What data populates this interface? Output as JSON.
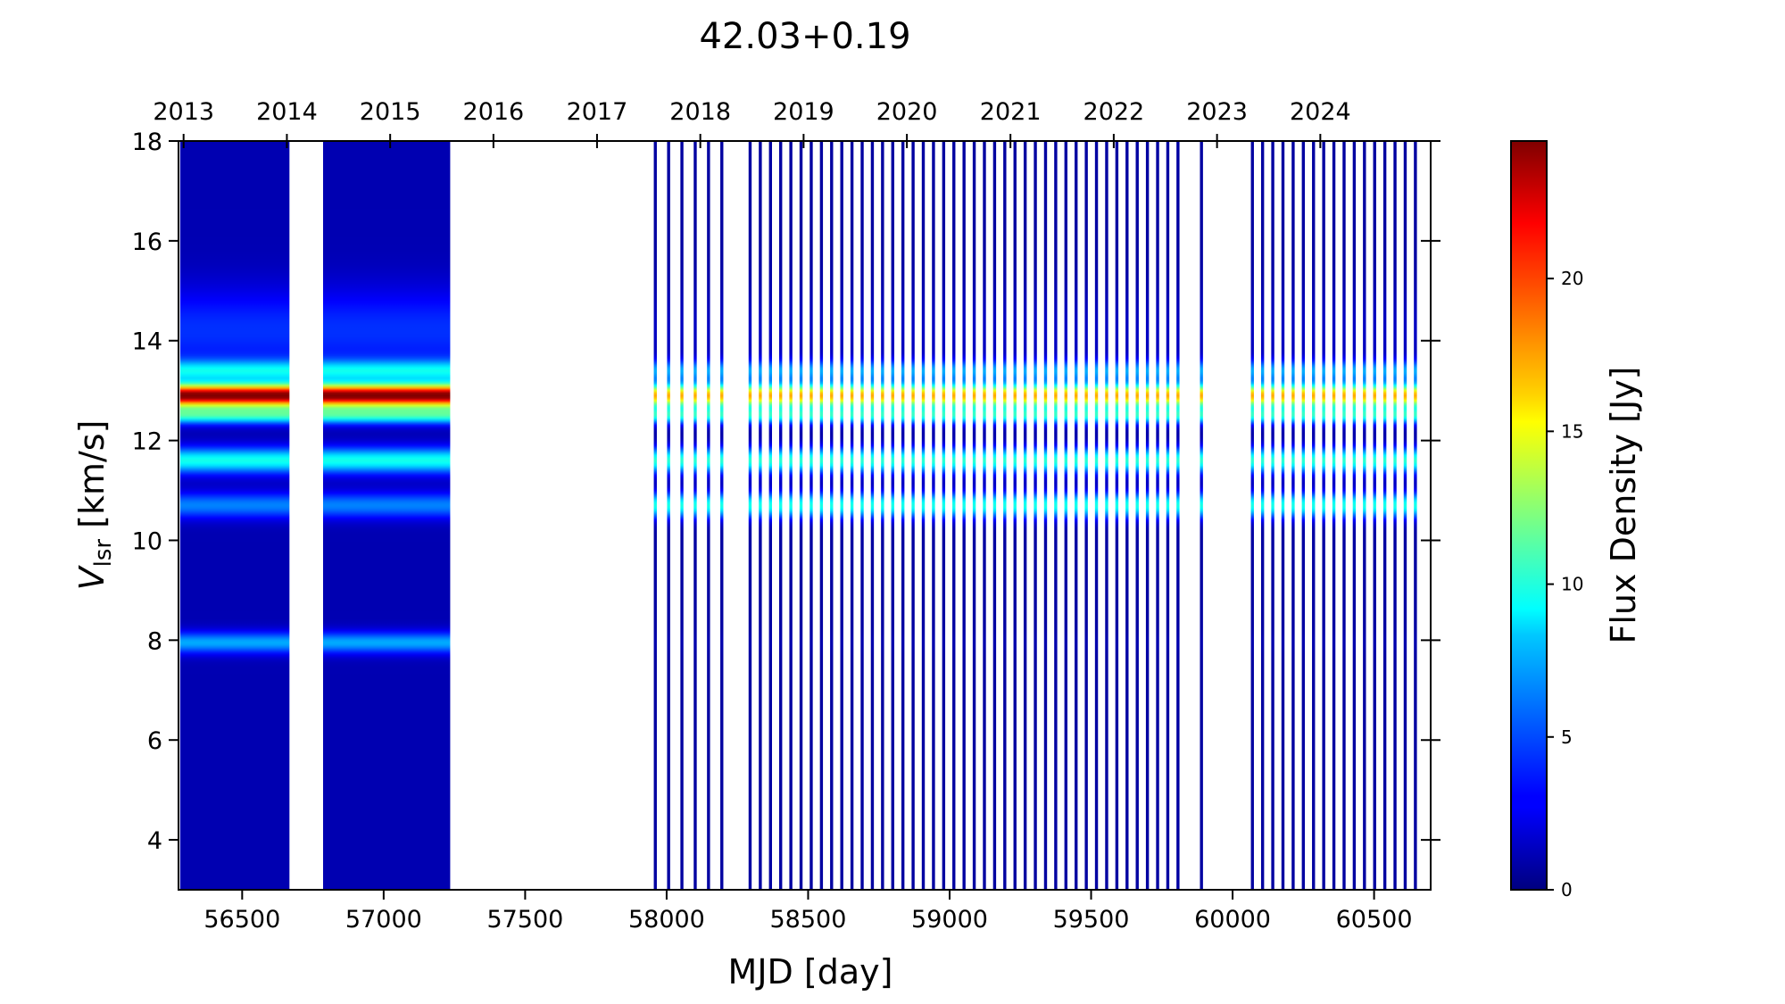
{
  "chart_data": {
    "type": "heatmap",
    "title": "42.03+0.19",
    "xlabel": "MJD [day]",
    "ylabel_main": "V",
    "ylabel_sub": "lsr",
    "ylabel_unit": " [km/s]",
    "xlim": [
      56275,
      60700
    ],
    "ylim": [
      3,
      18
    ],
    "x_ticks": [
      "56500",
      "57000",
      "57500",
      "58000",
      "58500",
      "59000",
      "59500",
      "60000",
      "60500"
    ],
    "x_tick_values": [
      56500,
      57000,
      57500,
      58000,
      58500,
      59000,
      59500,
      60000,
      60500
    ],
    "y_ticks": [
      "4",
      "6",
      "8",
      "10",
      "12",
      "14",
      "16",
      "18"
    ],
    "y_tick_values": [
      4,
      6,
      8,
      10,
      12,
      14,
      16,
      18
    ],
    "top_axis_years": [
      "2013",
      "2014",
      "2015",
      "2016",
      "2017",
      "2018",
      "2019",
      "2020",
      "2021",
      "2022",
      "2023",
      "2024"
    ],
    "top_axis_mjd": [
      56293,
      56658,
      57023,
      57388,
      57754,
      58119,
      58484,
      58849,
      59215,
      59580,
      59945,
      60310
    ],
    "colorbar": {
      "label": "Flux Density [Jy]",
      "min": 0,
      "max": 24.5,
      "ticks": [
        "0",
        "5",
        "10",
        "15",
        "20"
      ],
      "tick_values": [
        0,
        5,
        10,
        15,
        20
      ],
      "colormap": "jet"
    },
    "observation_groups": [
      {
        "mjd_start": 56285,
        "mjd_end": 56665,
        "spacing_days": 4.5
      },
      {
        "mjd_start": 56790,
        "mjd_end": 57235,
        "spacing_days": 4.5
      },
      {
        "mjd_start": 57960,
        "mjd_end": 58200,
        "spacing_days": 47
      },
      {
        "mjd_start": 58295,
        "mjd_end": 59810,
        "spacing_days": 36
      },
      {
        "mjd_start": 59890,
        "mjd_end": 59890,
        "spacing_days": 36
      },
      {
        "mjd_start": 60070,
        "mjd_end": 60650,
        "spacing_days": 36
      }
    ],
    "spectral_features": [
      {
        "velocity": 12.9,
        "width": 0.16,
        "flux_2013_2015": 23.5,
        "flux_2018_2024": 16.5
      },
      {
        "velocity": 12.5,
        "width": 0.12,
        "flux_2013_2015": 9,
        "flux_2018_2024": 9
      },
      {
        "velocity": 13.4,
        "width": 0.15,
        "flux_2013_2015": 7,
        "flux_2018_2024": 6
      },
      {
        "velocity": 11.6,
        "width": 0.18,
        "flux_2013_2015": 8.5,
        "flux_2018_2024": 9.5
      },
      {
        "velocity": 10.7,
        "width": 0.18,
        "flux_2013_2015": 5,
        "flux_2018_2024": 9
      },
      {
        "velocity": 7.95,
        "width": 0.15,
        "flux_2013_2015": 6,
        "flux_2018_2024": 0.3
      },
      {
        "velocity": 14.2,
        "width": 0.6,
        "flux_2013_2015": 3,
        "flux_2018_2024": 0.8
      }
    ],
    "grid": false
  }
}
